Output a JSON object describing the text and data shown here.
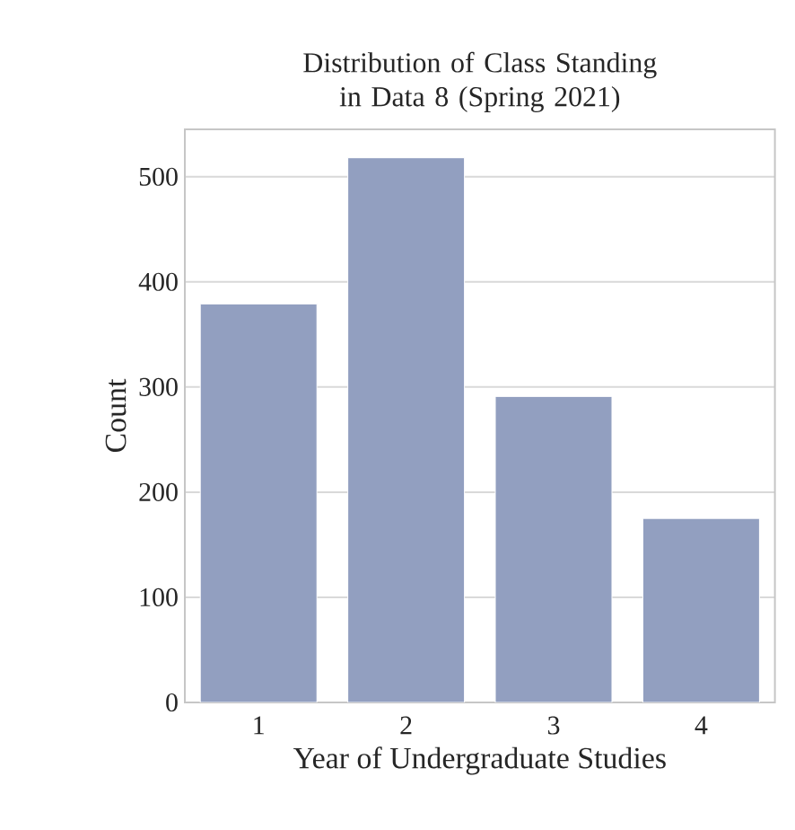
{
  "chart_data": {
    "type": "bar",
    "title": "Distribution of Class Standing in Data 8 (Spring 2021)",
    "xlabel": "Year of Undergraduate Studies",
    "ylabel": "Count",
    "categories": [
      "1",
      "2",
      "3",
      "4"
    ],
    "values": [
      379,
      518,
      291,
      175
    ],
    "color": "#929fc0",
    "ylim": [
      0,
      545
    ],
    "yticks": [
      0,
      100,
      200,
      300,
      400,
      500
    ],
    "grid": "y"
  }
}
